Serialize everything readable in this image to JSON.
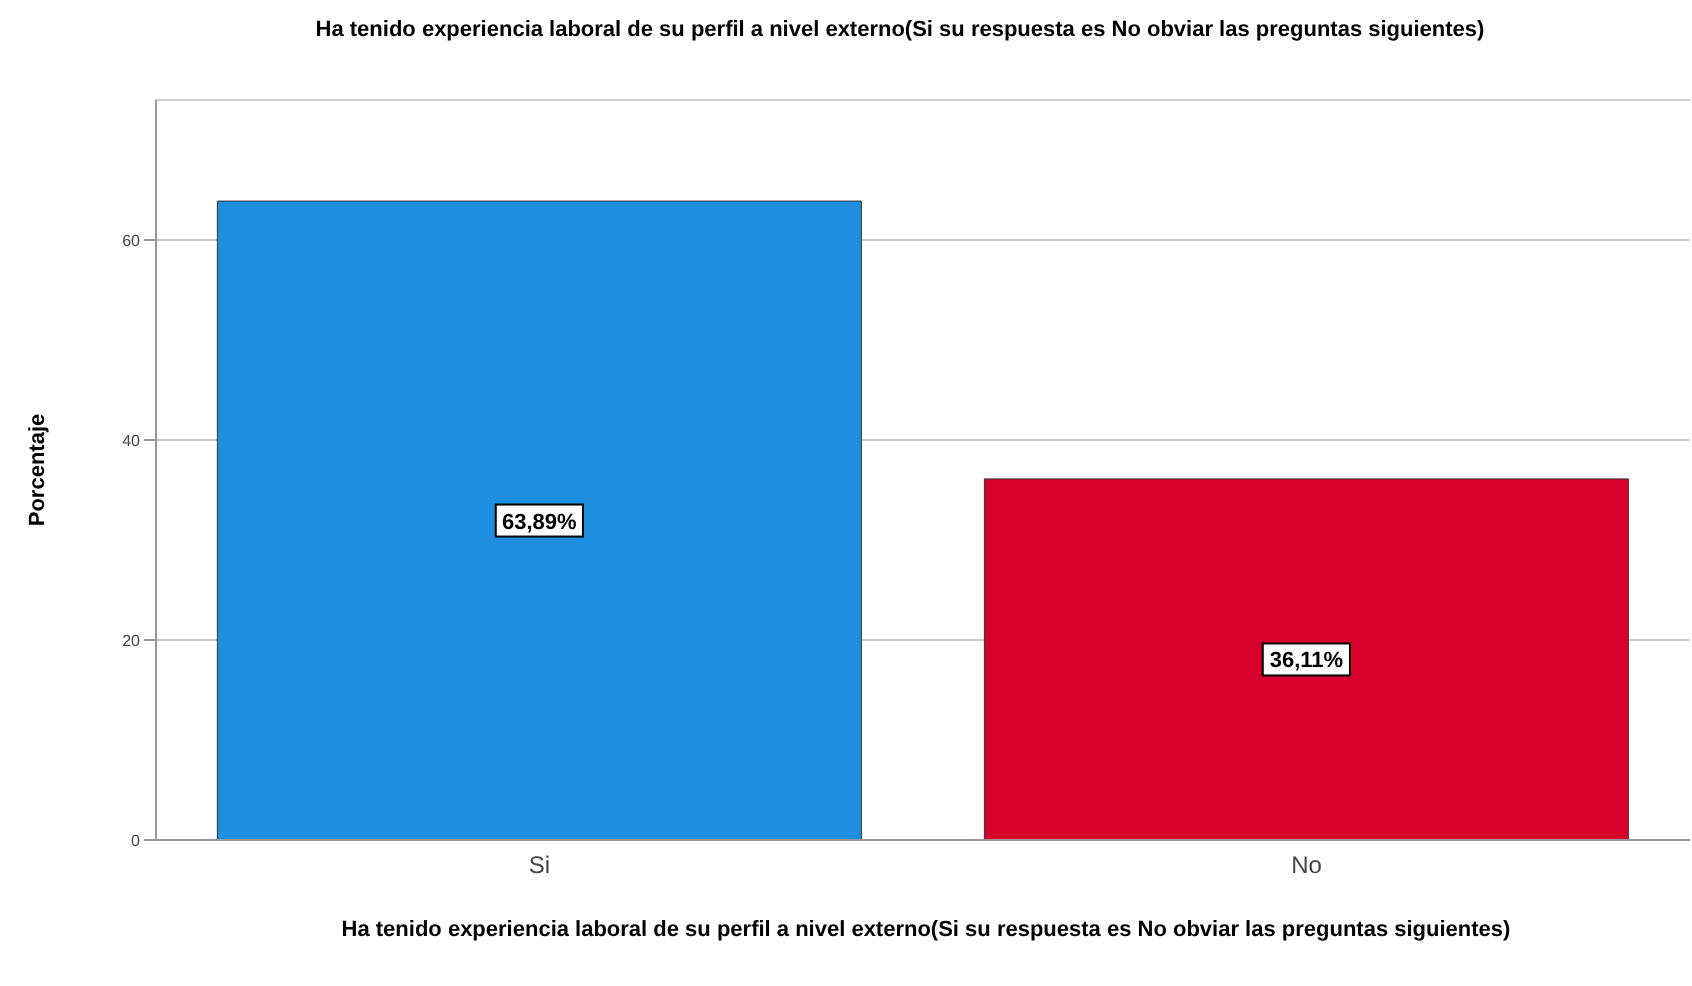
{
  "chart_data": {
    "type": "bar",
    "title": "Ha tenido experiencia laboral de su perfil a nivel externo(Si su respuesta es No obviar las preguntas siguientes)",
    "xlabel": "Ha tenido experiencia laboral de su perfil a nivel externo(Si su respuesta es No obviar las preguntas siguientes)",
    "ylabel": "Porcentaje",
    "categories": [
      "Si",
      "No"
    ],
    "values": [
      63.89,
      36.11
    ],
    "colors": [
      "#1e8fe0",
      "#d6002a"
    ],
    "value_labels": [
      "63,89%",
      "36,11%"
    ],
    "ylim": [
      0,
      74
    ],
    "yticks": [
      0,
      20,
      40,
      60
    ],
    "grid": "y"
  }
}
